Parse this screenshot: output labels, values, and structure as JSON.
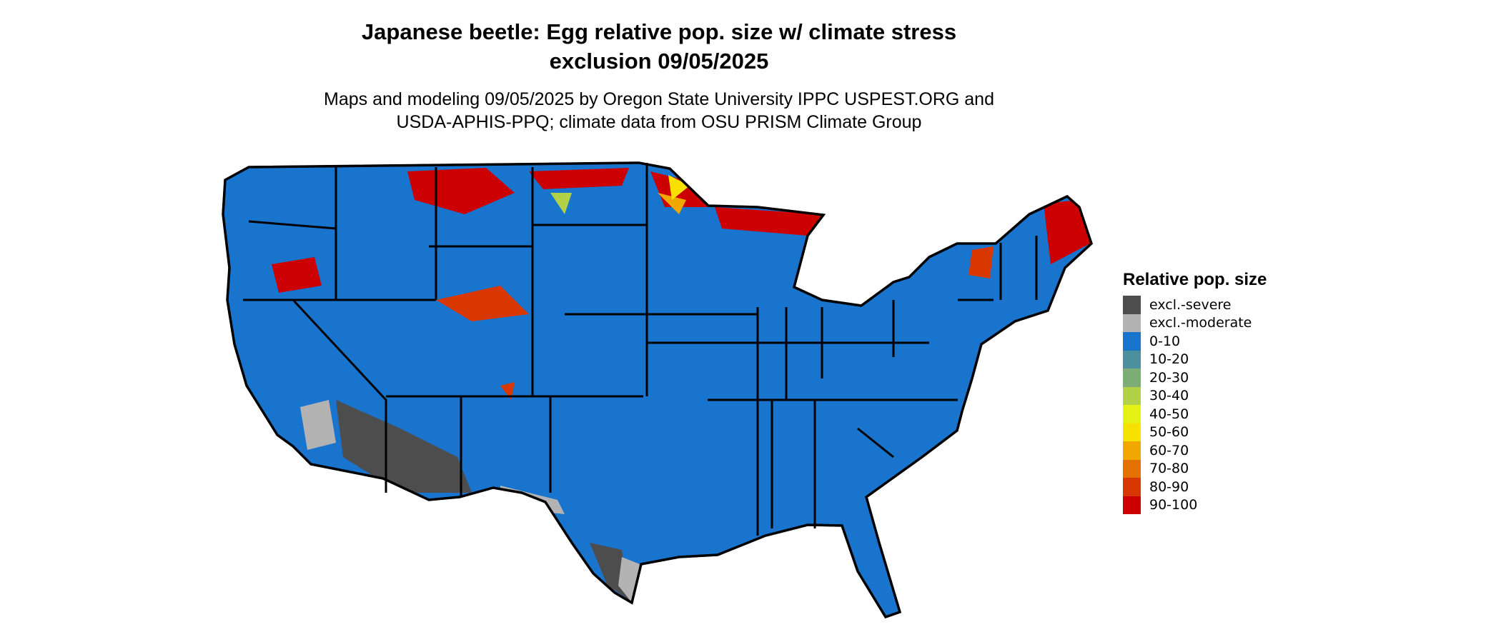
{
  "title": {
    "line1": "Japanese beetle: Egg relative pop. size w/ climate stress",
    "line2": "exclusion 09/05/2025"
  },
  "subtitle": {
    "line1": "Maps and modeling 09/05/2025 by Oregon State University IPPC USPEST.ORG and",
    "line2": "USDA-APHIS-PPQ; climate data from OSU PRISM Climate Group"
  },
  "legend": {
    "title": "Relative pop. size",
    "items": [
      {
        "label": "excl.-severe",
        "color": "#4d4d4d"
      },
      {
        "label": "excl.-moderate",
        "color": "#b3b3b3"
      },
      {
        "label": "0-10",
        "color": "#1874cd"
      },
      {
        "label": "10-20",
        "color": "#4a909e"
      },
      {
        "label": "20-30",
        "color": "#7bad74"
      },
      {
        "label": "30-40",
        "color": "#b2d147"
      },
      {
        "label": "40-50",
        "color": "#e5f015"
      },
      {
        "label": "50-60",
        "color": "#f8e000"
      },
      {
        "label": "60-70",
        "color": "#f0a800"
      },
      {
        "label": "70-80",
        "color": "#e47000"
      },
      {
        "label": "80-90",
        "color": "#d83800"
      },
      {
        "label": "90-100",
        "color": "#cc0000"
      }
    ]
  },
  "map": {
    "region": "conterminous United States",
    "dominant_class": "0-10",
    "border_color": "#000000"
  }
}
